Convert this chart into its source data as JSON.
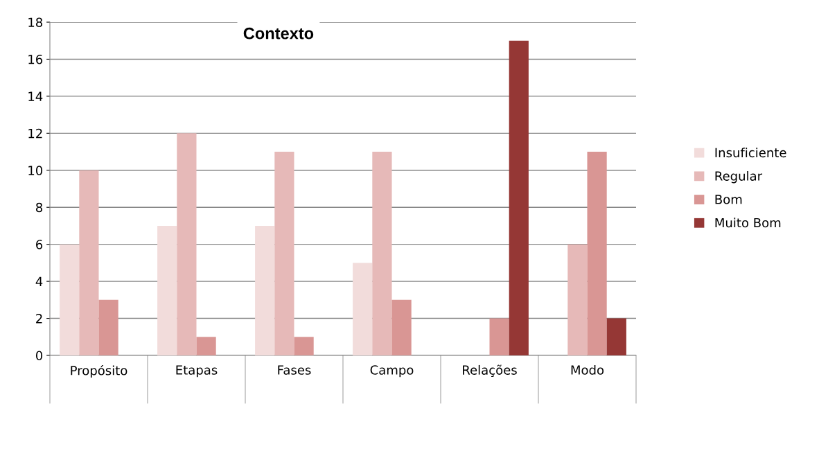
{
  "chart_data": {
    "type": "bar",
    "title": "Contexto",
    "categories": [
      "Propósito",
      "Etapas",
      "Fases",
      "Campo",
      "Relações",
      "Modo"
    ],
    "series": [
      {
        "name": "Insuficiente",
        "color": "#f2dcdb",
        "values": [
          6,
          7,
          7,
          5,
          0,
          0
        ]
      },
      {
        "name": "Regular",
        "color": "#e6b9b8",
        "values": [
          10,
          12,
          11,
          11,
          0,
          6
        ]
      },
      {
        "name": "Bom",
        "color": "#d99694",
        "values": [
          3,
          1,
          1,
          3,
          2,
          11
        ]
      },
      {
        "name": "Muito Bom",
        "color": "#953735",
        "values": [
          0,
          0,
          0,
          0,
          17,
          2
        ]
      }
    ],
    "ylim": [
      0,
      18
    ],
    "yticks": [
      0,
      2,
      4,
      6,
      8,
      10,
      12,
      14,
      16,
      18
    ],
    "grid": "y",
    "legend": "right"
  }
}
